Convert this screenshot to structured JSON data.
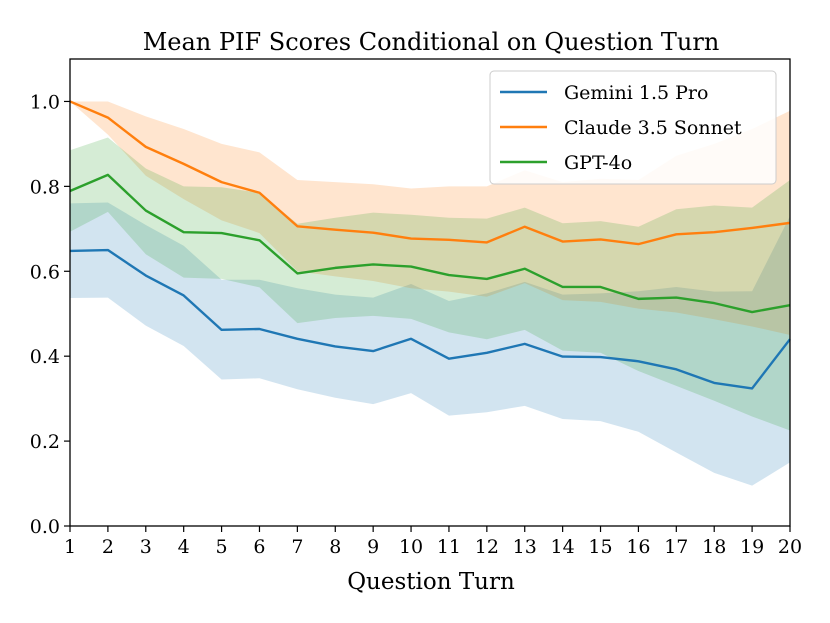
{
  "chart_data": {
    "type": "line",
    "title": "Mean PIF Scores Conditional on Question Turn",
    "xlabel": "Question Turn",
    "ylabel": "",
    "xlim": [
      1,
      20
    ],
    "ylim": [
      0.0,
      1.1
    ],
    "x": [
      1,
      2,
      3,
      4,
      5,
      6,
      7,
      8,
      9,
      10,
      11,
      12,
      13,
      14,
      15,
      16,
      17,
      18,
      19,
      20
    ],
    "xticks": [
      "1",
      "2",
      "3",
      "4",
      "5",
      "6",
      "7",
      "8",
      "9",
      "10",
      "11",
      "12",
      "13",
      "14",
      "15",
      "16",
      "17",
      "18",
      "19",
      "20"
    ],
    "yticks": [
      {
        "value": 0.0,
        "label": "0.0"
      },
      {
        "value": 0.2,
        "label": "0.2"
      },
      {
        "value": 0.4,
        "label": "0.4"
      },
      {
        "value": 0.6,
        "label": "0.6"
      },
      {
        "value": 0.8,
        "label": "0.8"
      },
      {
        "value": 1.0,
        "label": "1.0"
      }
    ],
    "legend_position": "top-right",
    "series": [
      {
        "name": "Gemini 1.5 Pro",
        "color": "#1f77b4",
        "values": [
          0.648,
          0.65,
          0.59,
          0.543,
          0.462,
          0.464,
          0.441,
          0.423,
          0.412,
          0.441,
          0.394,
          0.408,
          0.429,
          0.399,
          0.398,
          0.388,
          0.369,
          0.337,
          0.324,
          0.44
        ],
        "lower": [
          0.537,
          0.538,
          0.472,
          0.424,
          0.345,
          0.348,
          0.322,
          0.302,
          0.287,
          0.313,
          0.26,
          0.268,
          0.283,
          0.252,
          0.247,
          0.222,
          0.173,
          0.125,
          0.095,
          0.15
        ],
        "upper": [
          0.76,
          0.762,
          0.709,
          0.66,
          0.58,
          0.58,
          0.56,
          0.545,
          0.538,
          0.57,
          0.53,
          0.548,
          0.575,
          0.545,
          0.548,
          0.553,
          0.563,
          0.552,
          0.553,
          0.73
        ]
      },
      {
        "name": "Claude 3.5 Sonnet",
        "color": "#ff7f0e",
        "values": [
          1.0,
          0.962,
          0.893,
          0.853,
          0.81,
          0.785,
          0.706,
          0.698,
          0.691,
          0.677,
          0.674,
          0.668,
          0.705,
          0.67,
          0.675,
          0.664,
          0.687,
          0.692,
          0.702,
          0.714
        ],
        "lower": [
          1.0,
          0.922,
          0.825,
          0.77,
          0.72,
          0.69,
          0.6,
          0.588,
          0.577,
          0.56,
          0.552,
          0.54,
          0.572,
          0.532,
          0.528,
          0.512,
          0.503,
          0.487,
          0.47,
          0.45
        ],
        "upper": [
          1.0,
          1.0,
          0.965,
          0.935,
          0.9,
          0.88,
          0.815,
          0.81,
          0.805,
          0.795,
          0.8,
          0.8,
          0.838,
          0.81,
          0.818,
          0.815,
          0.872,
          0.9,
          0.935,
          0.978
        ]
      },
      {
        "name": "GPT-4o",
        "color": "#2ca02c",
        "values": [
          0.789,
          0.827,
          0.743,
          0.692,
          0.69,
          0.673,
          0.595,
          0.608,
          0.616,
          0.611,
          0.591,
          0.582,
          0.606,
          0.563,
          0.563,
          0.535,
          0.538,
          0.525,
          0.504,
          0.52
        ],
        "lower": [
          0.693,
          0.74,
          0.64,
          0.585,
          0.582,
          0.562,
          0.478,
          0.49,
          0.495,
          0.488,
          0.456,
          0.44,
          0.462,
          0.413,
          0.408,
          0.365,
          0.33,
          0.295,
          0.258,
          0.225
        ],
        "upper": [
          0.885,
          0.915,
          0.842,
          0.8,
          0.798,
          0.785,
          0.712,
          0.726,
          0.738,
          0.733,
          0.726,
          0.724,
          0.75,
          0.713,
          0.718,
          0.705,
          0.746,
          0.755,
          0.75,
          0.815
        ]
      }
    ]
  }
}
